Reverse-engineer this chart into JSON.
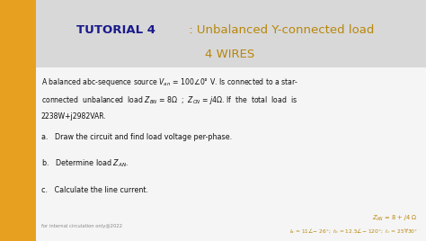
{
  "fig_width": 4.74,
  "fig_height": 2.68,
  "bg_dark": "#2a2a3e",
  "header_bg": "#d8d8d8",
  "content_bg": "#f5f5f5",
  "stripe_color": "#e8a020",
  "stripe_dark": "#2a2a2a",
  "title_bold_text": "TUTORIAL 4",
  "title_bold_color": "#1a1a8c",
  "title_rest_text": " : Unbalanced Y-connected load",
  "title_rest_color": "#b8860b",
  "title_line2": "4 WIRES",
  "title_line2_color": "#b8860b",
  "body_line1": "A balanced abc-sequence source $V_{an}$ = 100∠0° V. Is connected to a star-",
  "body_line2": "connected  unbalanced  load $Z_{BN}$ = 8Ω  ;  $Z_{CN}$ = $j$4Ω. If  the  total  load  is",
  "body_line3": "2238W+j2982VAR.",
  "question_a": "a.   Draw the circuit and find load voltage per-phase.",
  "question_b": "b.   Determine load $Z_{AN}$.",
  "question_c": "c.   Calculate the line current.",
  "footer_left": "for internal circulation only@2022",
  "footer_right1": "$Z_{AN}$ = 8 + $j$4 Ω",
  "footer_right2": "$I_a$ = 11∠− 26°;  $I_b$ = 12.5∠− 120°;  $I_c$ = 25∀30°",
  "footer_color": "#b8860b",
  "text_color": "#111111"
}
